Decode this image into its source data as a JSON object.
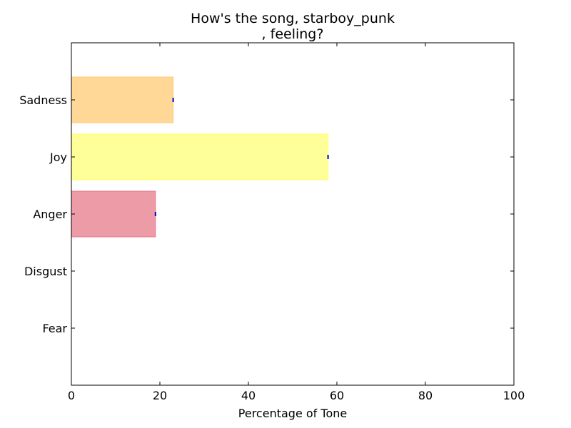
{
  "chart_data": {
    "type": "bar",
    "orientation": "horizontal",
    "title_lines": [
      "How's the song, starboy_punk",
      ", feeling?"
    ],
    "xlabel": "Percentage of Tone",
    "ylabel": "",
    "xlim": [
      0,
      100
    ],
    "xticks": [
      0,
      20,
      40,
      60,
      80,
      100
    ],
    "grid": false,
    "categories": [
      "Sadness",
      "Joy",
      "Anger",
      "Disgust",
      "Fear"
    ],
    "values": [
      23,
      58,
      19,
      0,
      0
    ],
    "colors": [
      "#ffd897",
      "#ffff99",
      "#ee9ba8",
      "#cccccc",
      "#cccccc"
    ],
    "edge_colors": [
      "#ffca75",
      "#ffff66",
      "#e8738a",
      "#cccccc",
      "#cccccc"
    ],
    "tip_marker_color": "#0000cc"
  }
}
